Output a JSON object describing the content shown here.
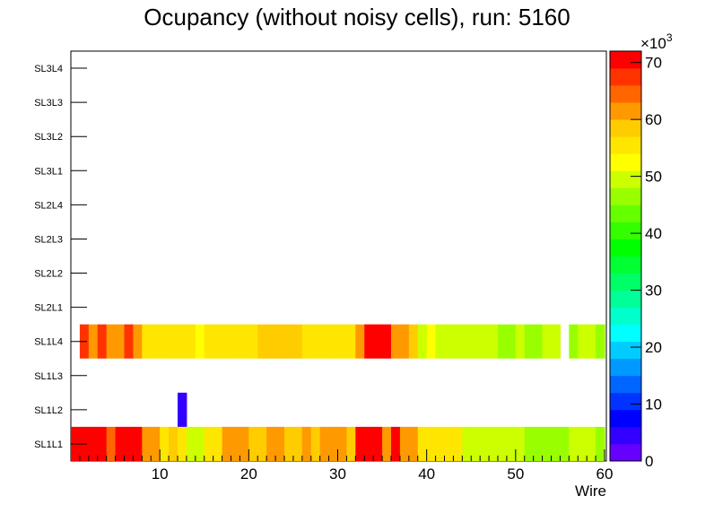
{
  "chart_data": {
    "type": "heatmap",
    "title": "Ocupancy (without noisy cells), run: 5160",
    "xlabel": "Wire",
    "ylabel": "",
    "xlim": [
      0,
      60
    ],
    "x_ticks": [
      10,
      20,
      30,
      40,
      50,
      60
    ],
    "rows": [
      "SL1L1",
      "SL1L2",
      "SL1L3",
      "SL1L4",
      "SL2L1",
      "SL2L2",
      "SL2L3",
      "SL2L4",
      "SL3L1",
      "SL3L2",
      "SL3L3",
      "SL3L4"
    ],
    "z_label": "×10³",
    "z_exponent_base": "×10",
    "z_exponent_power": "3",
    "z_range": [
      0,
      72
    ],
    "z_ticks": [
      0,
      10,
      20,
      30,
      40,
      50,
      60,
      70
    ],
    "palette": [
      "#6600ff",
      "#3300ff",
      "#0000ff",
      "#0033ff",
      "#0066ff",
      "#0099ff",
      "#00ccff",
      "#00ffff",
      "#00ffcc",
      "#00ff99",
      "#00ff66",
      "#00ff33",
      "#00ff00",
      "#33ff00",
      "#66ff00",
      "#99ff00",
      "#ccff00",
      "#ffff00",
      "#ffe600",
      "#ffcc00",
      "#ff9900",
      "#ff6600",
      "#ff3300",
      "#ff0000"
    ],
    "series": [
      {
        "name": "SL1L1",
        "values": [
          70,
          70,
          70,
          70,
          65,
          70,
          70,
          70,
          62,
          60,
          55,
          58,
          55,
          50,
          50,
          55,
          55,
          60,
          60,
          60,
          58,
          58,
          60,
          62,
          58,
          58,
          60,
          58,
          60,
          60,
          60,
          58,
          70,
          70,
          70,
          62,
          70,
          62,
          60,
          55,
          55,
          55,
          55,
          55,
          50,
          50,
          48,
          48,
          50,
          50,
          50,
          45,
          45,
          45,
          45,
          45,
          48,
          48,
          48,
          45
        ],
        "start_wire": 1
      },
      {
        "name": "SL1L2",
        "values": [
          0,
          0,
          0,
          0,
          0,
          0,
          0,
          0,
          0,
          0,
          0,
          0,
          3,
          0,
          0,
          0,
          0,
          0,
          0,
          0,
          0,
          0,
          0,
          0,
          0,
          0,
          0,
          0,
          0,
          0,
          0,
          0,
          0,
          0,
          0,
          0,
          0,
          0,
          0,
          0,
          0,
          0,
          0,
          0,
          0,
          0,
          0,
          0,
          0,
          0,
          0,
          0,
          0,
          0,
          0,
          0,
          0,
          0,
          0,
          0
        ],
        "start_wire": 1
      },
      {
        "name": "SL1L4",
        "values": [
          0,
          68,
          62,
          68,
          62,
          62,
          68,
          62,
          55,
          55,
          55,
          55,
          55,
          55,
          52,
          55,
          55,
          55,
          55,
          55,
          55,
          58,
          58,
          58,
          58,
          58,
          55,
          55,
          55,
          55,
          55,
          55,
          60,
          72,
          72,
          72,
          62,
          62,
          58,
          50,
          52,
          50,
          50,
          50,
          50,
          50,
          48,
          48,
          45,
          45,
          48,
          45,
          45,
          48,
          48,
          0,
          45,
          48,
          48,
          45
        ],
        "start_wire": 1
      }
    ]
  }
}
